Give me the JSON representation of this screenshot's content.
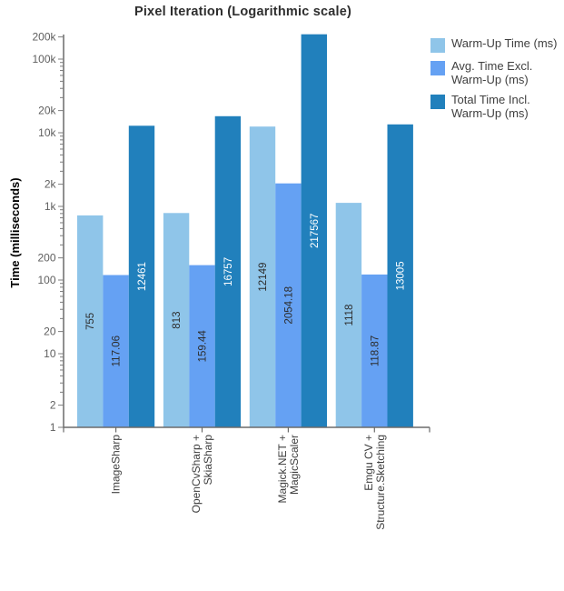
{
  "chart_data": {
    "type": "bar",
    "title": "Pixel Iteration (Logarithmic scale)",
    "ylabel": "Time (milliseconds)",
    "xlabel": "",
    "y_scale": "log10",
    "ylim": [
      1,
      215000
    ],
    "grid": false,
    "legend_position": "top-right",
    "categories": [
      {
        "name": "ImageSharp",
        "lines": [
          "ImageSharp"
        ]
      },
      {
        "name": "OpenCvSharp + SkiaSharp",
        "lines": [
          "OpenCvSharp +",
          "SkiaSharp"
        ]
      },
      {
        "name": "Magick.NET + MagicScaler",
        "lines": [
          "Magick.NET +",
          "MagicScaler"
        ]
      },
      {
        "name": "Emgu CV + Structure.Sketching",
        "lines": [
          "Emgu CV +",
          "Structure.Sketching"
        ]
      }
    ],
    "y_ticks": [
      {
        "v": 1,
        "label": "1"
      },
      {
        "v": 2,
        "label": "2"
      },
      {
        "v": 10,
        "label": "10"
      },
      {
        "v": 20,
        "label": "20"
      },
      {
        "v": 100,
        "label": "100"
      },
      {
        "v": 200,
        "label": "200"
      },
      {
        "v": 1000,
        "label": "1k"
      },
      {
        "v": 2000,
        "label": "2k"
      },
      {
        "v": 10000,
        "label": "10k"
      },
      {
        "v": 20000,
        "label": "20k"
      },
      {
        "v": 100000,
        "label": "100k"
      },
      {
        "v": 200000,
        "label": "200k"
      }
    ],
    "series": [
      {
        "name": "Warm-Up Time (ms)",
        "color": "#8FC5E9",
        "label_color": "#2d2d2d",
        "values": [
          755,
          813,
          12149,
          1118
        ],
        "value_labels": [
          "755",
          "813",
          "12149",
          "1118"
        ]
      },
      {
        "name": "Avg. Time Excl. Warm-Up (ms)",
        "color": "#65A1F3",
        "label_color": "#2d2d2d",
        "values": [
          117.06,
          159.44,
          2054.18,
          118.87
        ],
        "value_labels": [
          "117.06",
          "159.44",
          "2054.18",
          "118.87"
        ]
      },
      {
        "name": "Total Time Incl. Warm-Up (ms)",
        "color": "#2180BC",
        "label_color": "#ffffff",
        "values": [
          12461,
          16757,
          217567,
          13005
        ],
        "value_labels": [
          "12461",
          "16757",
          "217567",
          "13005"
        ]
      }
    ]
  },
  "legend": {
    "items": [
      {
        "label": "Warm-Up Time (ms)",
        "color": "#8FC5E9"
      },
      {
        "label": "Avg. Time Excl.\nWarm-Up (ms)",
        "color": "#65A1F3"
      },
      {
        "label": "Total Time Incl.\nWarm-Up (ms)",
        "color": "#2180BC"
      }
    ]
  }
}
